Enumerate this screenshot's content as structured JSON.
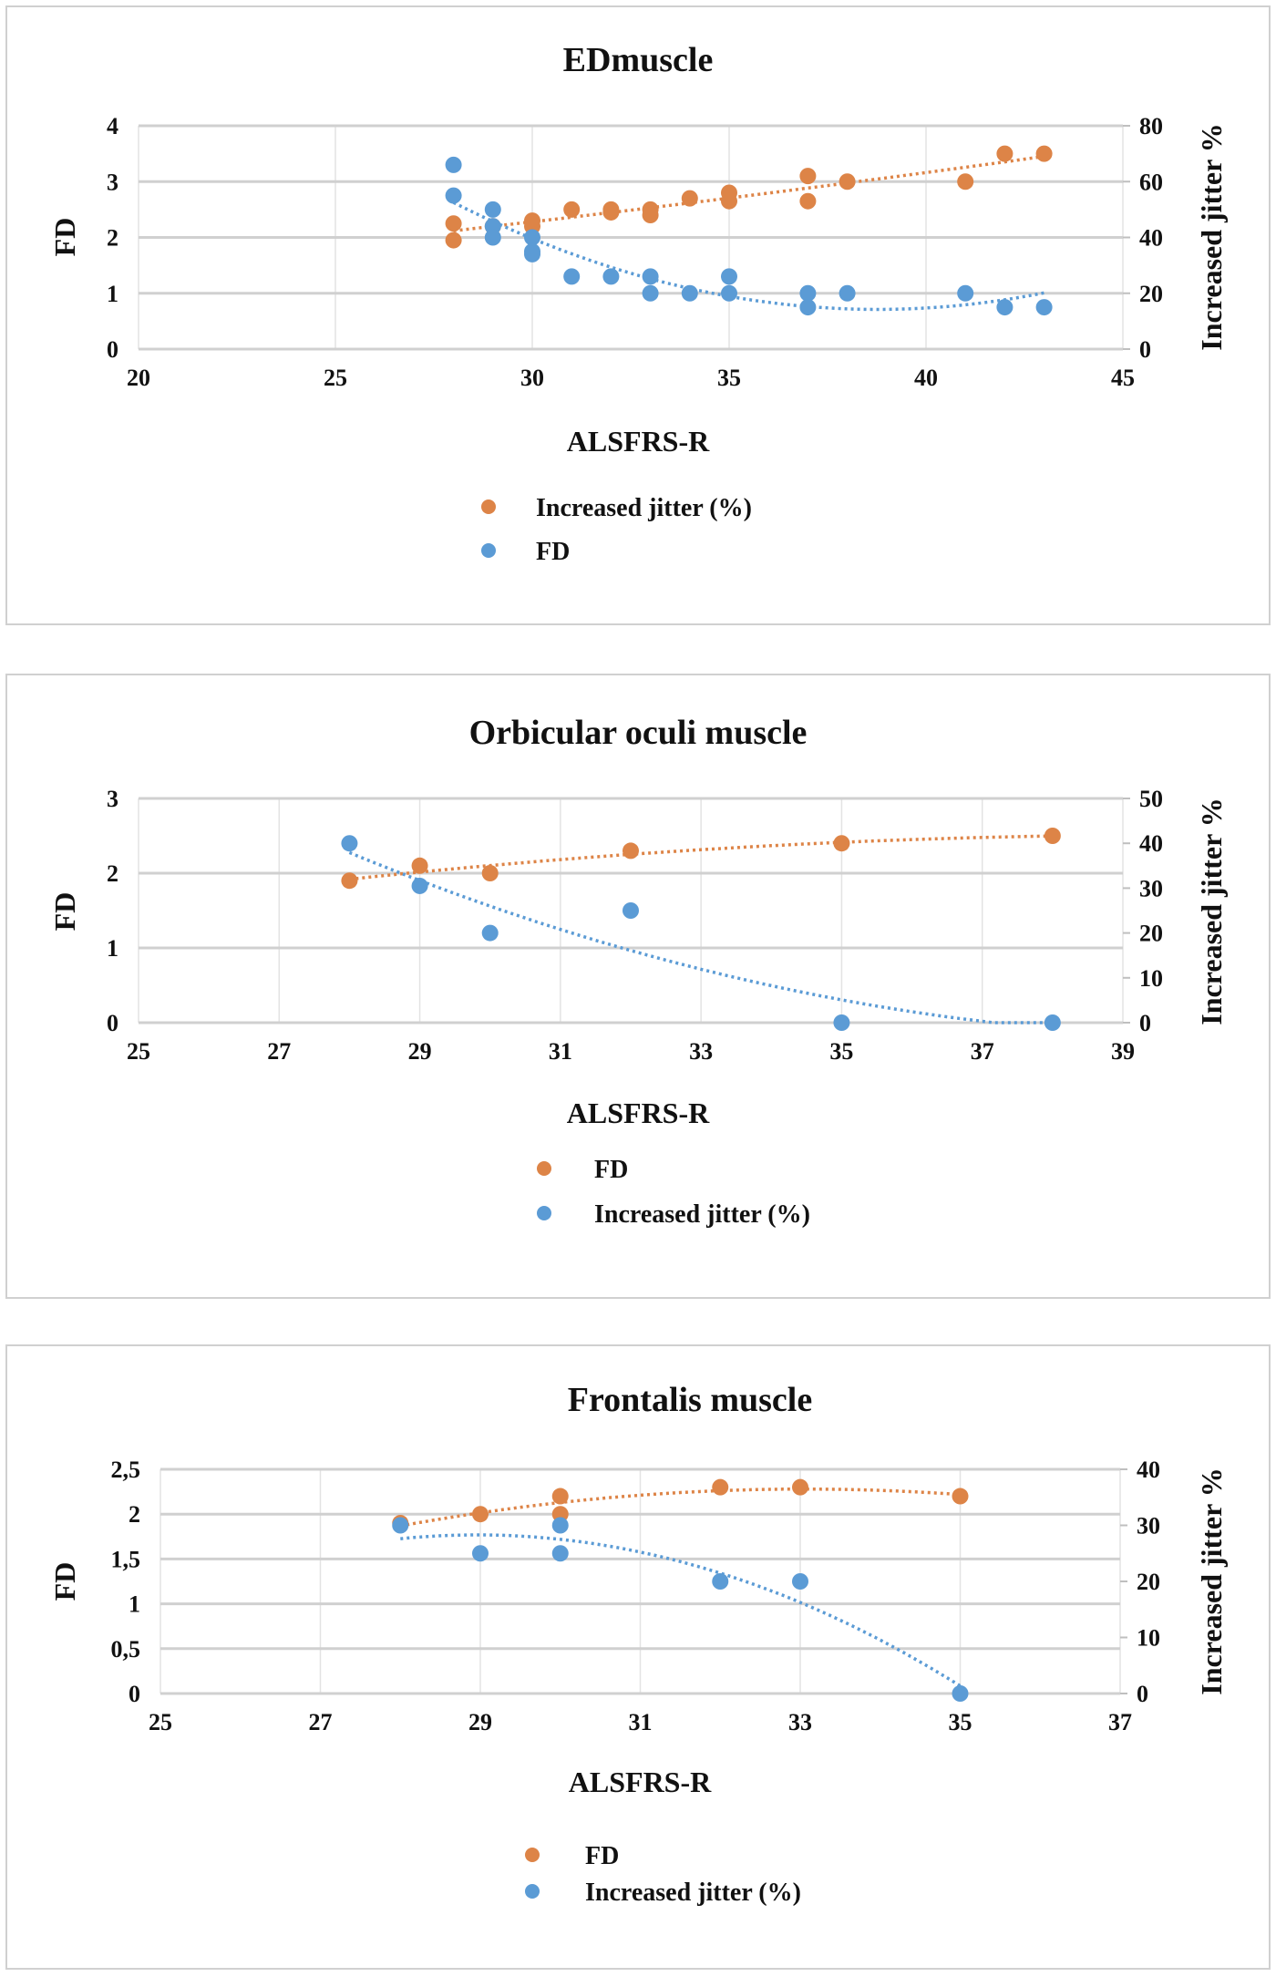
{
  "colors": {
    "orange": "#DD8447",
    "blue": "#5B9BD5",
    "grid": "#D9D9D9",
    "border": "#D0D0D0"
  },
  "chart_data": [
    {
      "type": "scatter",
      "title": "EDmuscle",
      "xlabel": "ALSFRS-R",
      "ylabel": "FD",
      "y2label": "Increased jitter %",
      "xlim": [
        20,
        45
      ],
      "xticks": [
        "20",
        "25",
        "30",
        "35",
        "40",
        "45"
      ],
      "ylim": [
        0,
        4
      ],
      "yticks": [
        "0",
        "1",
        "2",
        "3",
        "4"
      ],
      "y2lim": [
        0,
        80
      ],
      "y2ticks": [
        "0",
        "20",
        "40",
        "60",
        "80"
      ],
      "grid": true,
      "legend_position": "bottom",
      "trendline": "polynomial, dotted",
      "series": [
        {
          "name": "Increased jitter (%)",
          "color": "orange",
          "axis": "right",
          "x": [
            28,
            28,
            29,
            30,
            30,
            31,
            32,
            32,
            33,
            33,
            34,
            35,
            35,
            37,
            37,
            38,
            41,
            42,
            43
          ],
          "y": [
            45,
            39,
            44,
            46,
            44,
            50,
            50,
            49,
            50,
            48,
            54,
            56,
            53,
            62,
            53,
            60,
            60,
            70,
            70
          ]
        },
        {
          "name": "FD",
          "color": "blue",
          "axis": "left",
          "x": [
            28,
            28,
            29,
            29,
            29,
            30,
            30,
            30,
            31,
            32,
            33,
            33,
            34,
            35,
            35,
            37,
            37,
            38,
            41,
            42,
            43
          ],
          "y": [
            3.3,
            2.75,
            2.5,
            2.2,
            2.0,
            2.0,
            1.75,
            1.7,
            1.3,
            1.3,
            1.3,
            1.0,
            1.0,
            1.3,
            1.0,
            1.0,
            0.75,
            1.0,
            1.0,
            0.75,
            0.75
          ]
        }
      ]
    },
    {
      "type": "scatter",
      "title": "Orbicular oculi muscle",
      "xlabel": "ALSFRS-R",
      "ylabel": "FD",
      "y2label": "Increased jitter %",
      "xlim": [
        25,
        39
      ],
      "xticks": [
        "25",
        "27",
        "29",
        "31",
        "33",
        "35",
        "37",
        "39"
      ],
      "ylim": [
        0,
        3
      ],
      "yticks": [
        "0",
        "1",
        "2",
        "3"
      ],
      "y2lim": [
        0,
        50
      ],
      "y2ticks": [
        "0",
        "10",
        "20",
        "30",
        "40",
        "50"
      ],
      "grid": true,
      "legend_position": "bottom",
      "trendline": "polynomial, dotted",
      "series": [
        {
          "name": "FD",
          "color": "orange",
          "axis": "left",
          "x": [
            28,
            29,
            30,
            32,
            35,
            38
          ],
          "y": [
            1.9,
            2.1,
            2.0,
            2.3,
            2.4,
            2.5
          ]
        },
        {
          "name": "Increased jitter (%)",
          "color": "blue",
          "axis": "right",
          "x": [
            28,
            29,
            30,
            32,
            35,
            38
          ],
          "y": [
            40,
            30.5,
            20,
            25,
            0,
            0
          ]
        }
      ]
    },
    {
      "type": "scatter",
      "title": "Frontalis muscle",
      "xlabel": "ALSFRS-R",
      "ylabel": "FD",
      "y2label": "Increased jitter %",
      "xlim": [
        25,
        37
      ],
      "xticks": [
        "25",
        "27",
        "29",
        "31",
        "33",
        "35",
        "37"
      ],
      "ylim": [
        0,
        2.5
      ],
      "yticks": [
        "0",
        "0,5",
        "1",
        "1,5",
        "2",
        "2,5"
      ],
      "y2lim": [
        0,
        40
      ],
      "y2ticks": [
        "0",
        "10",
        "20",
        "30",
        "40"
      ],
      "grid": true,
      "legend_position": "bottom",
      "trendline": "polynomial, dotted",
      "series": [
        {
          "name": "FD",
          "color": "orange",
          "axis": "left",
          "x": [
            28,
            29,
            30,
            30,
            32,
            33,
            35
          ],
          "y": [
            1.9,
            2.0,
            2.2,
            2.0,
            2.3,
            2.3,
            2.2
          ]
        },
        {
          "name": "Increased jitter (%)",
          "color": "blue",
          "axis": "right",
          "x": [
            28,
            29,
            30,
            30,
            32,
            33,
            35
          ],
          "y": [
            30,
            25,
            30,
            25,
            20,
            20,
            0
          ]
        }
      ]
    }
  ]
}
